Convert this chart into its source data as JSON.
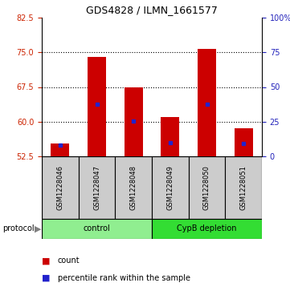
{
  "title": "GDS4828 / ILMN_1661577",
  "samples": [
    "GSM1228046",
    "GSM1228047",
    "GSM1228048",
    "GSM1228049",
    "GSM1228050",
    "GSM1228051"
  ],
  "count_values": [
    55.2,
    74.0,
    67.5,
    61.0,
    75.7,
    58.5
  ],
  "percentile_values": [
    55.0,
    63.8,
    60.2,
    55.5,
    63.8,
    55.2
  ],
  "baseline": 52.5,
  "ylim": [
    52.5,
    82.5
  ],
  "yticks_left": [
    52.5,
    60.0,
    67.5,
    75.0,
    82.5
  ],
  "right_yticks": [
    0,
    25,
    50,
    75,
    100
  ],
  "right_ylim": [
    0,
    100
  ],
  "bar_color": "#cc0000",
  "percentile_color": "#2222cc",
  "bar_width": 0.5,
  "control_color": "#90ee90",
  "depletion_color": "#33dd33",
  "sample_box_color": "#cccccc",
  "left_tick_color": "#cc2200",
  "right_tick_color": "#2222bb",
  "grid_yticks": [
    60.0,
    67.5,
    75.0
  ],
  "control_samples": [
    0,
    1,
    2
  ],
  "depletion_samples": [
    3,
    4,
    5
  ]
}
